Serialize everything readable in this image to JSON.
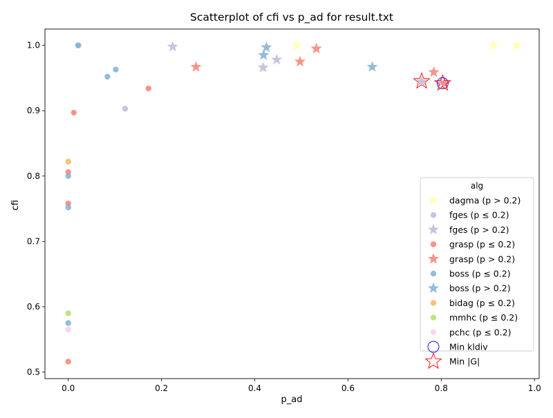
{
  "chart_data": {
    "type": "scatter",
    "title": "Scatterplot of cfi vs p_ad for result.txt",
    "xlabel": "p_ad",
    "ylabel": "cfi",
    "xlim": [
      -0.05,
      1.01
    ],
    "ylim": [
      0.49,
      1.025
    ],
    "xticks": [
      0.0,
      0.2,
      0.4,
      0.6,
      0.8,
      1.0
    ],
    "xtick_labels": [
      "0.0",
      "0.2",
      "0.4",
      "0.6",
      "0.8",
      "1.0"
    ],
    "yticks": [
      0.5,
      0.6,
      0.7,
      0.8,
      0.9,
      1.0
    ],
    "ytick_labels": [
      "0.5",
      "0.6",
      "0.7",
      "0.8",
      "0.9",
      "1.0"
    ],
    "grid": false,
    "legend": {
      "title": "alg",
      "placement": "lower right"
    },
    "series": [
      {
        "name": "dagma (p > 0.2)",
        "marker": "star",
        "color": "#ffffb3",
        "points": [
          [
            0.49,
            1.0
          ],
          [
            0.912,
            1.0
          ],
          [
            0.962,
            1.0
          ]
        ]
      },
      {
        "name": "fges (p ≤ 0.2)",
        "marker": "circle",
        "color": "#bebada",
        "points": [
          [
            0.022,
            1.0
          ],
          [
            0.122,
            0.903
          ]
        ]
      },
      {
        "name": "fges (p > 0.2)",
        "marker": "star",
        "color": "#bebada",
        "points": [
          [
            0.224,
            0.998
          ],
          [
            0.418,
            0.966
          ],
          [
            0.447,
            0.978
          ],
          [
            0.758,
            0.945
          ],
          [
            0.8,
            0.943
          ]
        ]
      },
      {
        "name": "grasp (p ≤ 0.2)",
        "marker": "circle",
        "color": "#fb8072",
        "points": [
          [
            0.012,
            0.897
          ],
          [
            0.172,
            0.934
          ],
          [
            0.0,
            0.806
          ],
          [
            0.0,
            0.758
          ],
          [
            0.0,
            0.516
          ]
        ]
      },
      {
        "name": "grasp (p > 0.2)",
        "marker": "star",
        "color": "#fb8072",
        "points": [
          [
            0.274,
            0.967
          ],
          [
            0.497,
            0.975
          ],
          [
            0.532,
            0.995
          ],
          [
            0.784,
            0.959
          ],
          [
            0.807,
            0.942
          ]
        ]
      },
      {
        "name": "boss (p ≤ 0.2)",
        "marker": "circle",
        "color": "#80b1d3",
        "points": [
          [
            0.021,
            1.0
          ],
          [
            0.084,
            0.952
          ],
          [
            0.102,
            0.963
          ],
          [
            0.0,
            0.8
          ],
          [
            0.0,
            0.752
          ],
          [
            0.0,
            0.575
          ]
        ]
      },
      {
        "name": "boss (p > 0.2)",
        "marker": "star",
        "color": "#80b1d3",
        "points": [
          [
            0.419,
            0.985
          ],
          [
            0.425,
            0.997
          ],
          [
            0.652,
            0.967
          ]
        ]
      },
      {
        "name": "bidag (p ≤ 0.2)",
        "marker": "circle",
        "color": "#fdb462",
        "points": [
          [
            0.0,
            0.822
          ]
        ]
      },
      {
        "name": "mmhc (p ≤ 0.2)",
        "marker": "circle",
        "color": "#b3de69",
        "points": [
          [
            0.0,
            0.59
          ]
        ]
      },
      {
        "name": "pchc (p ≤ 0.2)",
        "marker": "circle",
        "color": "#fccde5",
        "points": [
          [
            0.0,
            0.565
          ]
        ]
      }
    ],
    "highlights": [
      {
        "name": "Min kldiv",
        "marker": "open-circle",
        "color": "#0000ff",
        "points": [
          [
            0.803,
            0.942
          ]
        ]
      },
      {
        "name": "Min |G|",
        "marker": "open-star",
        "color": "#ff0000",
        "points": [
          [
            0.758,
            0.945
          ],
          [
            0.803,
            0.942
          ]
        ]
      }
    ]
  }
}
